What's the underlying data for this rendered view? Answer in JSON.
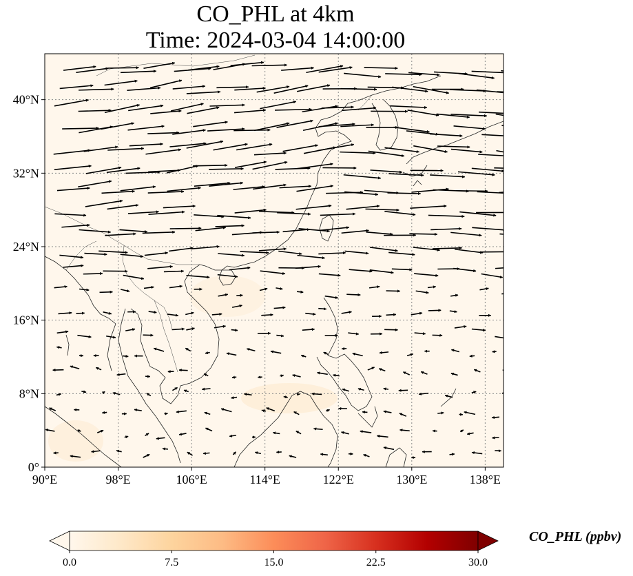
{
  "title": {
    "line1": "CO_PHL at 4km",
    "line2": "Time: 2024-03-04 14:00:00"
  },
  "map": {
    "projection": "PlateCarree",
    "lon_range": [
      90,
      140
    ],
    "lat_range": [
      0,
      45
    ],
    "gridlines": true,
    "background_value_ppbv": 0.3,
    "x_ticks": [
      {
        "value": 90,
        "label": "90°E"
      },
      {
        "value": 98,
        "label": "98°E"
      },
      {
        "value": 106,
        "label": "106°E"
      },
      {
        "value": 114,
        "label": "114°E"
      },
      {
        "value": 122,
        "label": "122°E"
      },
      {
        "value": 130,
        "label": "130°E"
      },
      {
        "value": 138,
        "label": "138°E"
      }
    ],
    "y_ticks": [
      {
        "value": 0,
        "label": "0°"
      },
      {
        "value": 8,
        "label": "8°N"
      },
      {
        "value": 16,
        "label": "16°N"
      },
      {
        "value": 24,
        "label": "24°N"
      },
      {
        "value": 32,
        "label": "32°N"
      },
      {
        "value": 40,
        "label": "40°N"
      }
    ],
    "wind_vectors": "westerlies north of ~20°N, weak easterly/variable flow in the tropics"
  },
  "colorbar": {
    "label": "CO_PHL (ppbv)",
    "colormap": "OrRd",
    "min": 0.0,
    "max": 30.0,
    "extend": "both",
    "ticks": [
      {
        "value": 0.0,
        "label": "0.0"
      },
      {
        "value": 7.5,
        "label": "7.5"
      },
      {
        "value": 15.0,
        "label": "15.0"
      },
      {
        "value": 22.5,
        "label": "22.5"
      },
      {
        "value": 30.0,
        "label": "30.0"
      }
    ],
    "colors": [
      "#fff7ec",
      "#fee8c8",
      "#fdd49e",
      "#fdbb84",
      "#fc8d59",
      "#ef6548",
      "#d7301f",
      "#b30000",
      "#7f0000"
    ]
  }
}
